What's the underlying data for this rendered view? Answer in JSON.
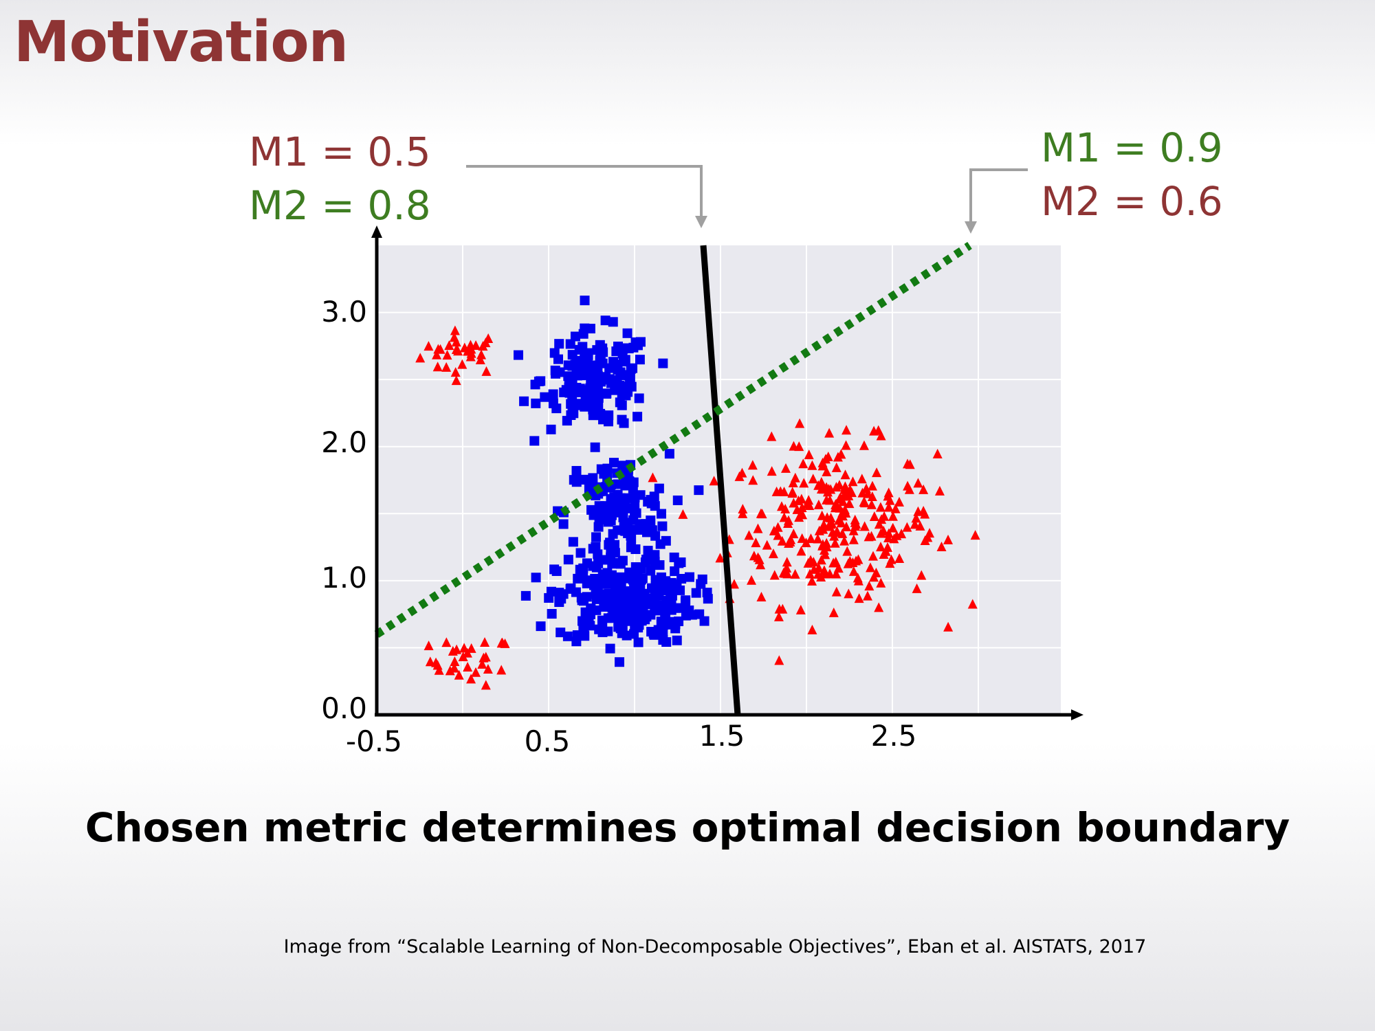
{
  "slide": {
    "title": "Motivation",
    "caption": "Chosen metric determines optimal decision boundary",
    "source": "Image from “Scalable Learning of Non-Decomposable Objectives”, Eban et al. AISTATS, 2017"
  },
  "annotations": {
    "left": {
      "m1": "M1 = 0.5",
      "m2": "M2 = 0.8",
      "boundary": "solid black line"
    },
    "right": {
      "m1": "M1 = 0.9",
      "m2": "M2 = 0.6",
      "boundary": "dotted green line"
    }
  },
  "colors": {
    "title": "#8e3434",
    "metric_red": "#8e3434",
    "metric_green": "#3e7d21",
    "positive_class": "#ff0000",
    "negative_class": "#0000ee",
    "dotted_boundary": "#127a12",
    "solid_boundary": "#000000",
    "plot_background": "#e9e9ef",
    "arrow_gray": "#a0a0a0"
  },
  "chart_data": {
    "type": "scatter",
    "x_tick_labels": [
      "-0.5",
      "0.5",
      "1.5",
      "2.5"
    ],
    "y_tick_labels": [
      "0.0",
      "1.0",
      "2.0",
      "3.0"
    ],
    "xlim": [
      -0.5,
      3.5
    ],
    "ylim": [
      0.0,
      3.5
    ],
    "grid": true,
    "series": [
      {
        "marker": "triangle",
        "color": "#ff0000",
        "clusters": [
          {
            "center": [
              0.0,
              2.7
            ],
            "spread": [
              0.12,
              0.08
            ],
            "count": 30
          },
          {
            "center": [
              0.05,
              0.4
            ],
            "spread": [
              0.12,
              0.09
            ],
            "count": 30
          },
          {
            "center": [
              2.15,
              1.42
            ],
            "spread": [
              0.3,
              0.3
            ],
            "count": 270
          }
        ]
      },
      {
        "marker": "square",
        "color": "#0000ee",
        "clusters": [
          {
            "center": [
              0.78,
              2.5
            ],
            "spread": [
              0.16,
              0.18
            ],
            "count": 170
          },
          {
            "center": [
              0.9,
              1.5
            ],
            "spread": [
              0.15,
              0.22
            ],
            "count": 140
          },
          {
            "center": [
              0.95,
              0.85
            ],
            "spread": [
              0.2,
              0.16
            ],
            "count": 260
          }
        ]
      }
    ],
    "boundaries": [
      {
        "style": "solid",
        "color": "#000000",
        "from": [
          1.4,
          3.5
        ],
        "to": [
          1.6,
          0.0
        ]
      },
      {
        "style": "dotted",
        "color": "#127a12",
        "from": [
          -0.5,
          0.6
        ],
        "to": [
          2.95,
          3.5
        ]
      }
    ]
  }
}
